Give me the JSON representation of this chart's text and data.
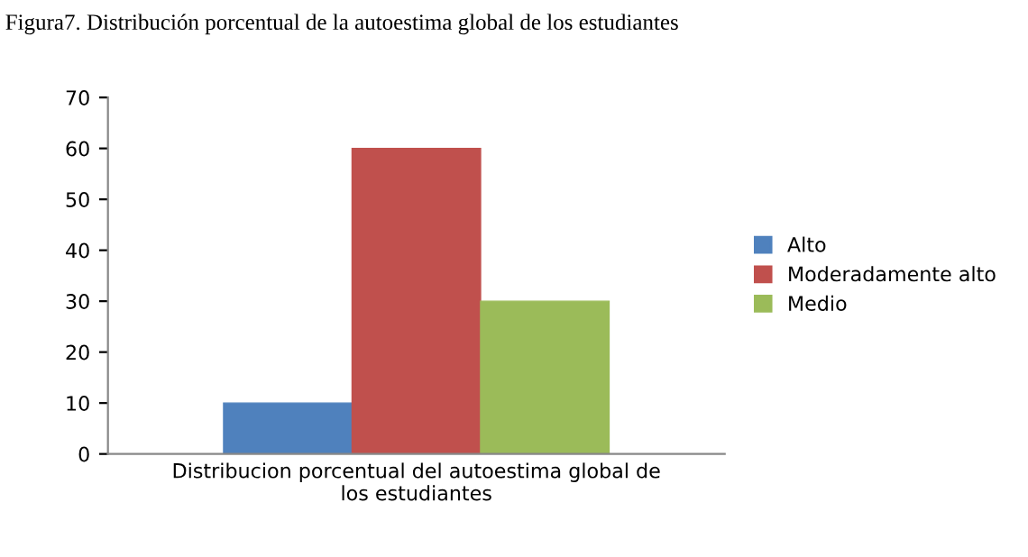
{
  "chart_data": {
    "type": "bar",
    "title": "Figura7. Distribución porcentual de la autoestima global de los estudiantes",
    "categories": [
      "Distribucion porcentual del autoestima global de los estudiantes"
    ],
    "series": [
      {
        "name": "Alto",
        "color": "#4f81bd",
        "values": [
          10
        ]
      },
      {
        "name": "Moderadamente alto",
        "color": "#c0504d",
        "values": [
          60
        ]
      },
      {
        "name": "Medio",
        "color": "#9bbb59",
        "values": [
          30
        ]
      }
    ],
    "ylim": [
      0,
      70
    ],
    "yticks": [
      0,
      10,
      20,
      30,
      40,
      50,
      60,
      70
    ],
    "grid": false,
    "legend": "right"
  }
}
